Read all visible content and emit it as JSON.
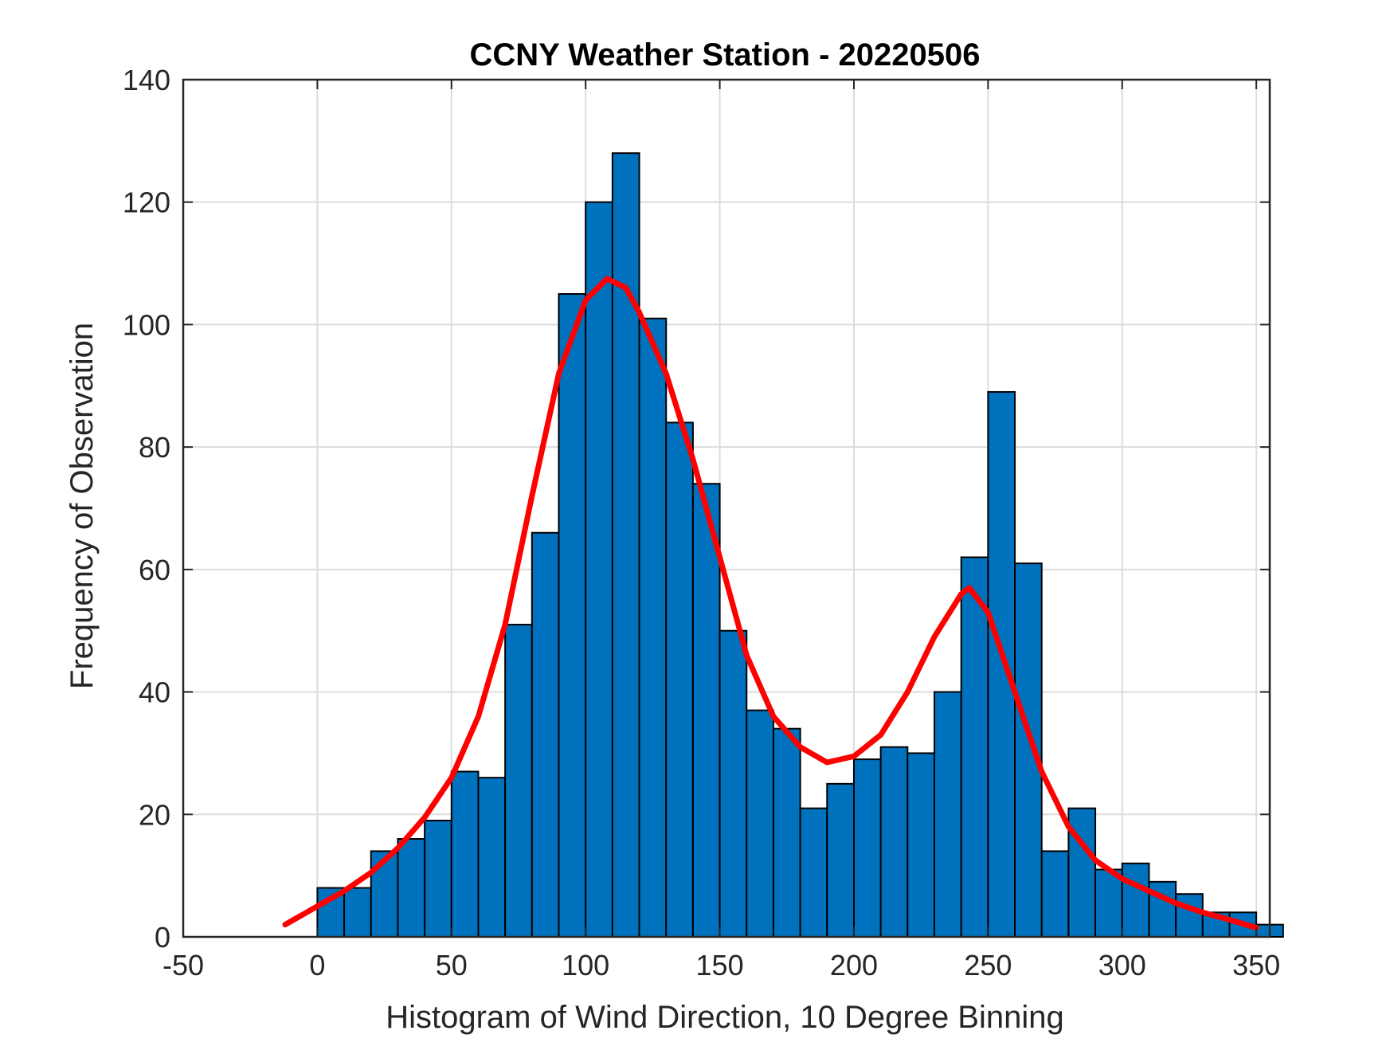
{
  "chart_data": {
    "type": "bar",
    "title": "CCNY Weather Station - 20220506",
    "xlabel": "Histogram of Wind Direction, 10 Degree Binning",
    "ylabel": "Frequency of Observation",
    "xlim": [
      -50,
      355
    ],
    "ylim": [
      0,
      140
    ],
    "grid": true,
    "bin_width": 10,
    "x_ticks": [
      -50,
      0,
      50,
      100,
      150,
      200,
      250,
      300,
      350
    ],
    "y_ticks": [
      0,
      20,
      40,
      60,
      80,
      100,
      120,
      140
    ],
    "bin_edges": [
      0,
      10,
      20,
      30,
      40,
      50,
      60,
      70,
      80,
      90,
      100,
      110,
      120,
      130,
      140,
      150,
      160,
      170,
      180,
      190,
      200,
      210,
      220,
      230,
      240,
      250,
      260,
      270,
      280,
      290,
      300,
      310,
      320,
      330,
      340,
      350
    ],
    "values": [
      8,
      8,
      14,
      16,
      19,
      27,
      26,
      51,
      66,
      105,
      120,
      128,
      101,
      84,
      74,
      50,
      37,
      34,
      21,
      25,
      29,
      31,
      30,
      40,
      62,
      89,
      61,
      14,
      21,
      11,
      12,
      9,
      7,
      4,
      4,
      2
    ],
    "bar_color": "#0072BD",
    "bar_edge_color": "#000000",
    "fit_curve": {
      "name": "fit",
      "color": "#FF0000",
      "x": [
        -12,
        0,
        10,
        20,
        30,
        40,
        50,
        60,
        70,
        80,
        90,
        100,
        108,
        115,
        120,
        130,
        140,
        150,
        160,
        170,
        180,
        190,
        200,
        210,
        220,
        230,
        240,
        243,
        250,
        260,
        270,
        280,
        290,
        300,
        310,
        320,
        330,
        340,
        350
      ],
      "y": [
        2,
        5,
        7.5,
        10.5,
        14.5,
        19.5,
        26,
        36,
        51,
        72,
        92,
        104,
        107.5,
        106,
        102,
        92,
        78,
        62,
        46,
        36,
        31,
        28.5,
        29.5,
        33,
        40,
        49,
        56,
        57,
        53,
        40,
        27,
        18,
        12.5,
        9.5,
        7.5,
        5.5,
        4,
        2.8,
        1.5
      ]
    }
  }
}
